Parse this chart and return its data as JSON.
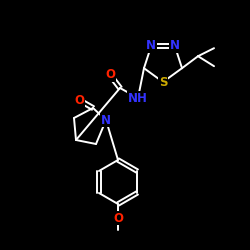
{
  "background": "#000000",
  "bond_color": "#ffffff",
  "atom_colors": {
    "N": "#3333ff",
    "O": "#ff2200",
    "S": "#ccaa00",
    "C": "#ffffff",
    "H": "#ffffff"
  },
  "figsize": [
    2.5,
    2.5
  ],
  "dpi": 100
}
